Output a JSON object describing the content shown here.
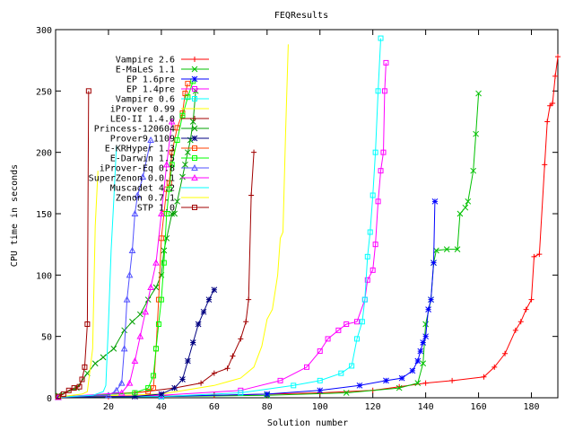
{
  "chart_data": {
    "type": "line",
    "title": "FEQResults",
    "xlabel": "Solution number",
    "ylabel": "CPU time in seconds",
    "xlim": [
      0,
      190
    ],
    "ylim": [
      0,
      300
    ],
    "x_ticks": [
      "20",
      "40",
      "60",
      "80",
      "100",
      "120",
      "140",
      "160",
      "180"
    ],
    "y_ticks": [
      "0",
      "50",
      "100",
      "150",
      "200",
      "250",
      "300"
    ],
    "grid": false,
    "legend_position": "top-left",
    "series": [
      {
        "name": "Vampire 2.6",
        "color": "#ff0000",
        "marker": "plus",
        "points": [
          [
            1,
            0.5
          ],
          [
            20,
            0.8
          ],
          [
            60,
            2
          ],
          [
            100,
            4
          ],
          [
            120,
            6
          ],
          [
            130,
            9
          ],
          [
            140,
            12
          ],
          [
            150,
            14
          ],
          [
            162,
            17
          ],
          [
            166,
            25
          ],
          [
            170,
            36
          ],
          [
            174,
            55
          ],
          [
            176,
            62
          ],
          [
            178,
            72
          ],
          [
            180,
            80
          ],
          [
            181,
            115
          ],
          [
            183,
            117
          ],
          [
            185,
            190
          ],
          [
            186,
            225
          ],
          [
            187,
            238
          ],
          [
            188,
            240
          ],
          [
            189,
            262
          ],
          [
            190,
            278
          ]
        ]
      },
      {
        "name": "E-MaLeS 1.1",
        "color": "#00c000",
        "marker": "cross",
        "points": [
          [
            1,
            0.5
          ],
          [
            40,
            1
          ],
          [
            80,
            2
          ],
          [
            110,
            4
          ],
          [
            130,
            8
          ],
          [
            137,
            12
          ],
          [
            139,
            28
          ],
          [
            140,
            60
          ],
          [
            142,
            80
          ],
          [
            143,
            110
          ],
          [
            144,
            120
          ],
          [
            148,
            121
          ],
          [
            152,
            121
          ],
          [
            153,
            150
          ],
          [
            155,
            155
          ],
          [
            156,
            160
          ],
          [
            158,
            185
          ],
          [
            159,
            215
          ],
          [
            160,
            248
          ]
        ]
      },
      {
        "name": "EP 1.6pre",
        "color": "#0000ff",
        "marker": "star",
        "points": [
          [
            1,
            0.5
          ],
          [
            40,
            1
          ],
          [
            80,
            3
          ],
          [
            100,
            6
          ],
          [
            115,
            10
          ],
          [
            125,
            14
          ],
          [
            131,
            16
          ],
          [
            135,
            22
          ],
          [
            137,
            30
          ],
          [
            138,
            38
          ],
          [
            139,
            45
          ],
          [
            140,
            50
          ],
          [
            141,
            72
          ],
          [
            142,
            80
          ],
          [
            143,
            110
          ],
          [
            143.5,
            160
          ]
        ]
      },
      {
        "name": "EP 1.4pre",
        "color": "#ff00ff",
        "marker": "square",
        "points": [
          [
            1,
            0.5
          ],
          [
            40,
            2
          ],
          [
            70,
            6
          ],
          [
            85,
            14
          ],
          [
            95,
            25
          ],
          [
            100,
            38
          ],
          [
            103,
            48
          ],
          [
            107,
            55
          ],
          [
            110,
            60
          ],
          [
            114,
            62
          ],
          [
            117,
            80
          ],
          [
            118,
            96
          ],
          [
            120,
            104
          ],
          [
            121,
            125
          ],
          [
            122,
            160
          ],
          [
            123,
            185
          ],
          [
            124,
            200
          ],
          [
            124.5,
            250
          ],
          [
            125,
            273
          ]
        ]
      },
      {
        "name": "Vampire 0.6",
        "color": "#00ffff",
        "marker": "square",
        "points": [
          [
            1,
            0.5
          ],
          [
            40,
            1
          ],
          [
            70,
            4
          ],
          [
            90,
            10
          ],
          [
            100,
            14
          ],
          [
            108,
            20
          ],
          [
            112,
            26
          ],
          [
            114,
            48
          ],
          [
            116,
            62
          ],
          [
            117,
            80
          ],
          [
            118,
            115
          ],
          [
            119,
            135
          ],
          [
            120,
            165
          ],
          [
            121,
            200
          ],
          [
            122,
            250
          ],
          [
            123,
            293
          ]
        ]
      },
      {
        "name": "iProver 0.99",
        "color": "#ffff00",
        "marker": "none",
        "points": [
          [
            1,
            0.5
          ],
          [
            40,
            3
          ],
          [
            60,
            10
          ],
          [
            70,
            16
          ],
          [
            75,
            25
          ],
          [
            78,
            42
          ],
          [
            80,
            64
          ],
          [
            82,
            72
          ],
          [
            84,
            100
          ],
          [
            85,
            130
          ],
          [
            86,
            135
          ],
          [
            87,
            215
          ],
          [
            88,
            288
          ]
        ]
      },
      {
        "name": "LEO-II 1.4.0",
        "color": "#a00000",
        "marker": "plus",
        "points": [
          [
            1,
            0.5
          ],
          [
            30,
            4
          ],
          [
            45,
            8
          ],
          [
            55,
            12
          ],
          [
            60,
            20
          ],
          [
            65,
            24
          ],
          [
            67,
            34
          ],
          [
            70,
            48
          ],
          [
            72,
            62
          ],
          [
            73,
            80
          ],
          [
            74,
            165
          ],
          [
            75,
            200
          ]
        ]
      },
      {
        "name": "Princess-120604",
        "color": "#00a000",
        "marker": "cross",
        "points": [
          [
            1,
            2
          ],
          [
            8,
            8
          ],
          [
            12,
            20
          ],
          [
            15,
            28
          ],
          [
            18,
            33
          ],
          [
            22,
            40
          ],
          [
            26,
            55
          ],
          [
            29,
            62
          ],
          [
            32,
            68
          ],
          [
            35,
            80
          ],
          [
            38,
            90
          ],
          [
            40,
            100
          ],
          [
            41,
            120
          ],
          [
            42,
            130
          ],
          [
            44,
            150
          ],
          [
            45,
            150
          ],
          [
            46,
            160
          ],
          [
            48,
            180
          ],
          [
            49,
            190
          ],
          [
            50,
            200
          ],
          [
            51,
            210
          ],
          [
            52,
            225
          ],
          [
            53,
            250
          ]
        ]
      },
      {
        "name": "Prover9 1109",
        "color": "#000080",
        "marker": "star",
        "points": [
          [
            1,
            0.5
          ],
          [
            30,
            1
          ],
          [
            40,
            3
          ],
          [
            45,
            8
          ],
          [
            48,
            15
          ],
          [
            50,
            30
          ],
          [
            52,
            45
          ],
          [
            54,
            60
          ],
          [
            56,
            70
          ],
          [
            58,
            80
          ],
          [
            60,
            88
          ]
        ]
      },
      {
        "name": "E-KRHyper 1.3",
        "color": "#ff4000",
        "marker": "square",
        "points": [
          [
            1,
            0.5
          ],
          [
            35,
            5
          ],
          [
            37,
            8
          ],
          [
            38,
            40
          ],
          [
            39,
            80
          ],
          [
            40,
            130
          ],
          [
            41,
            150
          ],
          [
            42,
            170
          ],
          [
            43,
            175
          ],
          [
            44,
            200
          ],
          [
            46,
            220
          ],
          [
            48,
            232
          ],
          [
            49,
            248
          ],
          [
            50,
            256
          ]
        ]
      },
      {
        "name": "E-Darwin 1.5",
        "color": "#00ff00",
        "marker": "square",
        "points": [
          [
            1,
            0.5
          ],
          [
            30,
            4
          ],
          [
            35,
            8
          ],
          [
            37,
            18
          ],
          [
            38,
            40
          ],
          [
            39,
            60
          ],
          [
            40,
            80
          ],
          [
            41,
            110
          ],
          [
            42,
            150
          ],
          [
            43,
            170
          ],
          [
            44,
            190
          ],
          [
            46,
            210
          ],
          [
            48,
            230
          ],
          [
            50,
            245
          ],
          [
            52,
            258
          ]
        ]
      },
      {
        "name": "iProver-Eq 0.8",
        "color": "#5050ff",
        "marker": "triangle",
        "points": [
          [
            1,
            0.5
          ],
          [
            20,
            2
          ],
          [
            23,
            6
          ],
          [
            25,
            12
          ],
          [
            26,
            40
          ],
          [
            27,
            80
          ],
          [
            28,
            100
          ],
          [
            29,
            120
          ],
          [
            30,
            150
          ],
          [
            31,
            165
          ],
          [
            33,
            180
          ],
          [
            36,
            210
          ]
        ]
      },
      {
        "name": "SuperZenon 0.0.1",
        "color": "#ff00ff",
        "marker": "triangle",
        "points": [
          [
            1,
            0.5
          ],
          [
            25,
            4
          ],
          [
            28,
            12
          ],
          [
            30,
            30
          ],
          [
            32,
            50
          ],
          [
            34,
            70
          ],
          [
            36,
            90
          ],
          [
            38,
            110
          ],
          [
            40,
            150
          ],
          [
            42,
            190
          ],
          [
            44,
            225
          ]
        ]
      },
      {
        "name": "Muscadet 4.2",
        "color": "#00ffff",
        "marker": "none",
        "points": [
          [
            1,
            0.5
          ],
          [
            14,
            2
          ],
          [
            18,
            5
          ],
          [
            19,
            10
          ],
          [
            20,
            60
          ],
          [
            21,
            120
          ],
          [
            22,
            160
          ],
          [
            23,
            205
          ]
        ]
      },
      {
        "name": "Zenon 0.7.1",
        "color": "#ffff00",
        "marker": "none",
        "points": [
          [
            1,
            0.5
          ],
          [
            10,
            3
          ],
          [
            12,
            5
          ],
          [
            14,
            40
          ],
          [
            15,
            140
          ],
          [
            16,
            185
          ]
        ]
      },
      {
        "name": "STP 1.0",
        "color": "#a00000",
        "marker": "square",
        "points": [
          [
            1,
            1
          ],
          [
            3,
            3
          ],
          [
            5,
            6
          ],
          [
            7,
            8
          ],
          [
            9,
            9
          ],
          [
            10,
            15
          ],
          [
            11,
            25
          ],
          [
            12,
            60
          ],
          [
            12.5,
            250
          ]
        ]
      }
    ]
  }
}
